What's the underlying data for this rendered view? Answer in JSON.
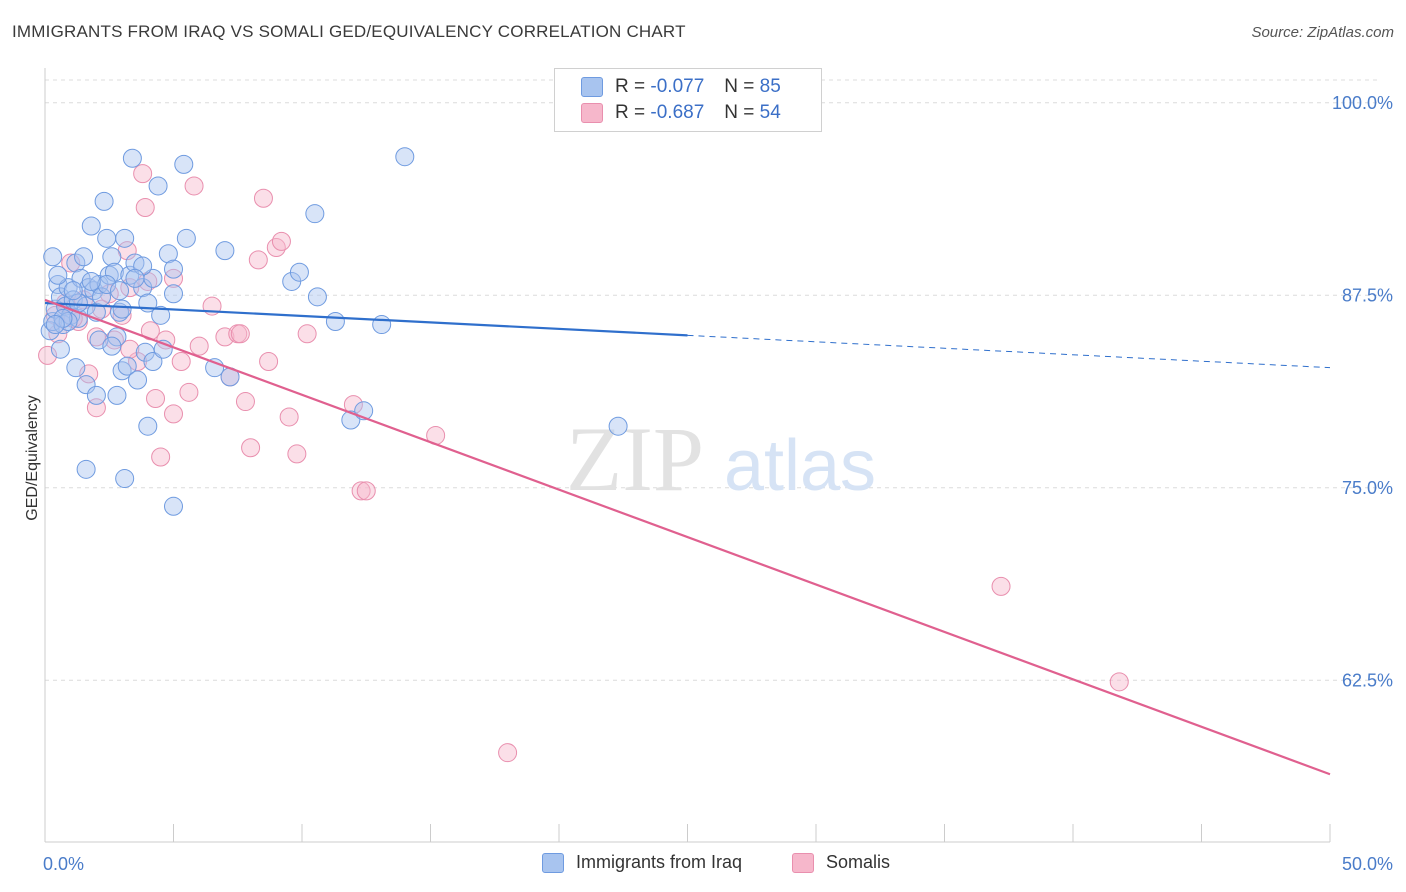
{
  "title": "IMMIGRANTS FROM IRAQ VS SOMALI GED/EQUIVALENCY CORRELATION CHART",
  "source": "Source: ZipAtlas.com",
  "watermark": {
    "zip": "ZIP",
    "atlas": "atlas"
  },
  "legend": {
    "rows": [
      {
        "r_label": "R =",
        "r_value": "-0.077",
        "n_label": "N =",
        "n_value": "85"
      },
      {
        "r_label": "R =",
        "r_value": "-0.687",
        "n_label": "N =",
        "n_value": "54"
      }
    ]
  },
  "bottom_legend": {
    "series1": "Immigrants from Iraq",
    "series2": "Somalis"
  },
  "colors": {
    "iraq_fill": "#a8c4ef",
    "iraq_stroke": "#6f9be0",
    "iraq_line": "#2f6fcc",
    "somali_fill": "#f6b7cb",
    "somali_stroke": "#e98fae",
    "somali_line": "#e0608f",
    "tick_text": "#4a7cc9",
    "grid": "#dcdcdc"
  },
  "chart_data": {
    "type": "scatter",
    "ylabel": "GED/Equivalency",
    "xlim": [
      0,
      50
    ],
    "ylim": [
      52,
      102
    ],
    "x_tick_labels": [
      "0.0%",
      "50.0%"
    ],
    "y_ticks": [
      62.5,
      75.0,
      87.5,
      100.0
    ],
    "y_tick_labels": [
      "62.5%",
      "75.0%",
      "87.5%",
      "100.0%"
    ],
    "grid": true,
    "legend_position": "top-center",
    "series": [
      {
        "name": "Immigrants from Iraq",
        "trend": {
          "x": [
            0,
            25
          ],
          "y": [
            87.0,
            84.9
          ],
          "dashed_extension": {
            "x": [
              25,
              50
            ],
            "y": [
              84.9,
              82.8
            ]
          }
        },
        "points": [
          [
            0.2,
            85.2
          ],
          [
            0.3,
            85.8
          ],
          [
            0.4,
            86.6
          ],
          [
            0.5,
            88.2
          ],
          [
            0.6,
            87.4
          ],
          [
            0.7,
            85.6
          ],
          [
            0.8,
            86.8
          ],
          [
            0.9,
            88.0
          ],
          [
            1.0,
            86.2
          ],
          [
            1.1,
            87.2
          ],
          [
            1.2,
            89.6
          ],
          [
            1.3,
            86.0
          ],
          [
            1.4,
            88.6
          ],
          [
            1.5,
            90.0
          ],
          [
            1.6,
            86.8
          ],
          [
            1.7,
            88.0
          ],
          [
            1.8,
            92.0
          ],
          [
            1.9,
            87.8
          ],
          [
            2.0,
            86.4
          ],
          [
            2.1,
            88.2
          ],
          [
            2.2,
            87.4
          ],
          [
            2.3,
            93.6
          ],
          [
            2.4,
            91.2
          ],
          [
            2.5,
            88.8
          ],
          [
            2.6,
            90.0
          ],
          [
            2.7,
            89.0
          ],
          [
            2.8,
            84.8
          ],
          [
            2.9,
            86.4
          ],
          [
            3.0,
            86.6
          ],
          [
            3.1,
            91.2
          ],
          [
            3.3,
            88.8
          ],
          [
            3.5,
            89.6
          ],
          [
            3.8,
            88.0
          ],
          [
            4.0,
            87.0
          ],
          [
            4.2,
            88.6
          ],
          [
            4.5,
            86.2
          ],
          [
            4.8,
            90.2
          ],
          [
            5.0,
            89.2
          ],
          [
            5.5,
            91.2
          ],
          [
            7.0,
            90.4
          ],
          [
            3.4,
            96.4
          ],
          [
            4.4,
            94.6
          ],
          [
            5.4,
            96.0
          ],
          [
            10.5,
            92.8
          ],
          [
            14.0,
            96.5
          ],
          [
            9.6,
            88.4
          ],
          [
            9.9,
            89.0
          ],
          [
            10.6,
            87.4
          ],
          [
            11.3,
            85.8
          ],
          [
            13.1,
            85.6
          ],
          [
            0.6,
            84.0
          ],
          [
            1.2,
            82.8
          ],
          [
            1.6,
            81.7
          ],
          [
            2.1,
            84.6
          ],
          [
            2.6,
            84.2
          ],
          [
            2.8,
            81.0
          ],
          [
            3.0,
            82.6
          ],
          [
            3.2,
            82.9
          ],
          [
            3.6,
            82.0
          ],
          [
            3.9,
            83.8
          ],
          [
            4.2,
            83.2
          ],
          [
            1.6,
            76.2
          ],
          [
            3.1,
            75.6
          ],
          [
            4.0,
            79.0
          ],
          [
            5.0,
            73.8
          ],
          [
            6.6,
            82.8
          ],
          [
            7.2,
            82.2
          ],
          [
            11.9,
            79.4
          ],
          [
            12.4,
            80.0
          ],
          [
            22.3,
            79.0
          ],
          [
            0.3,
            90.0
          ],
          [
            0.5,
            88.8
          ],
          [
            0.9,
            85.8
          ],
          [
            1.3,
            87.0
          ],
          [
            2.4,
            88.2
          ],
          [
            3.8,
            89.4
          ],
          [
            4.6,
            84.0
          ],
          [
            5.0,
            87.6
          ],
          [
            2.0,
            81.0
          ],
          [
            0.7,
            86.0
          ],
          [
            1.8,
            88.4
          ],
          [
            2.9,
            87.8
          ],
          [
            3.5,
            88.6
          ],
          [
            1.1,
            87.8
          ],
          [
            0.4,
            85.6
          ]
        ]
      },
      {
        "name": "Somalis",
        "trend": {
          "x": [
            0,
            50
          ],
          "y": [
            87.2,
            56.4
          ]
        },
        "points": [
          [
            0.1,
            83.6
          ],
          [
            0.4,
            86.2
          ],
          [
            0.8,
            87.0
          ],
          [
            1.0,
            89.6
          ],
          [
            1.3,
            85.8
          ],
          [
            1.5,
            87.2
          ],
          [
            1.7,
            82.4
          ],
          [
            2.0,
            80.2
          ],
          [
            2.2,
            86.6
          ],
          [
            2.5,
            87.6
          ],
          [
            2.7,
            84.6
          ],
          [
            3.0,
            86.2
          ],
          [
            3.3,
            88.0
          ],
          [
            3.6,
            83.2
          ],
          [
            3.8,
            95.4
          ],
          [
            3.9,
            93.2
          ],
          [
            4.1,
            85.2
          ],
          [
            4.3,
            80.8
          ],
          [
            4.5,
            77.0
          ],
          [
            4.7,
            84.6
          ],
          [
            5.0,
            79.8
          ],
          [
            5.3,
            83.2
          ],
          [
            5.6,
            81.2
          ],
          [
            5.8,
            94.6
          ],
          [
            6.0,
            84.2
          ],
          [
            6.5,
            86.8
          ],
          [
            7.0,
            84.8
          ],
          [
            7.2,
            82.2
          ],
          [
            7.5,
            85.0
          ],
          [
            7.8,
            80.6
          ],
          [
            8.0,
            77.6
          ],
          [
            8.3,
            89.8
          ],
          [
            8.5,
            93.8
          ],
          [
            8.7,
            83.2
          ],
          [
            9.0,
            90.6
          ],
          [
            9.2,
            91.0
          ],
          [
            9.5,
            79.6
          ],
          [
            9.8,
            77.2
          ],
          [
            10.2,
            85.0
          ],
          [
            12.0,
            80.4
          ],
          [
            12.3,
            74.8
          ],
          [
            12.5,
            74.8
          ],
          [
            15.2,
            78.4
          ],
          [
            37.2,
            68.6
          ],
          [
            41.8,
            62.4
          ],
          [
            18.0,
            57.8
          ],
          [
            4.0,
            88.4
          ],
          [
            3.3,
            84.0
          ],
          [
            2.0,
            84.8
          ],
          [
            7.6,
            85.0
          ],
          [
            1.1,
            86.0
          ],
          [
            0.5,
            85.0
          ],
          [
            5.0,
            88.6
          ],
          [
            3.2,
            90.4
          ]
        ]
      }
    ]
  }
}
